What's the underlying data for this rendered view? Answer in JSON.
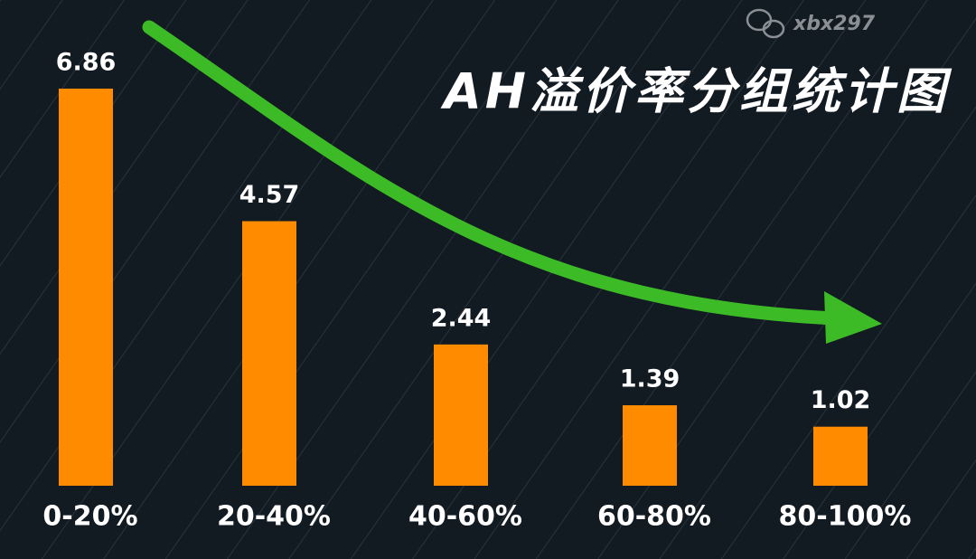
{
  "chart_data": {
    "type": "bar",
    "title": "AH溢价率分组统计图",
    "watermark": "xbx297",
    "categories": [
      "0-20%",
      "20-40%",
      "40-60%",
      "60-80%",
      "80-100%"
    ],
    "values": [
      6.86,
      4.57,
      2.44,
      1.39,
      1.02
    ],
    "color": "#ff8c00"
  }
}
